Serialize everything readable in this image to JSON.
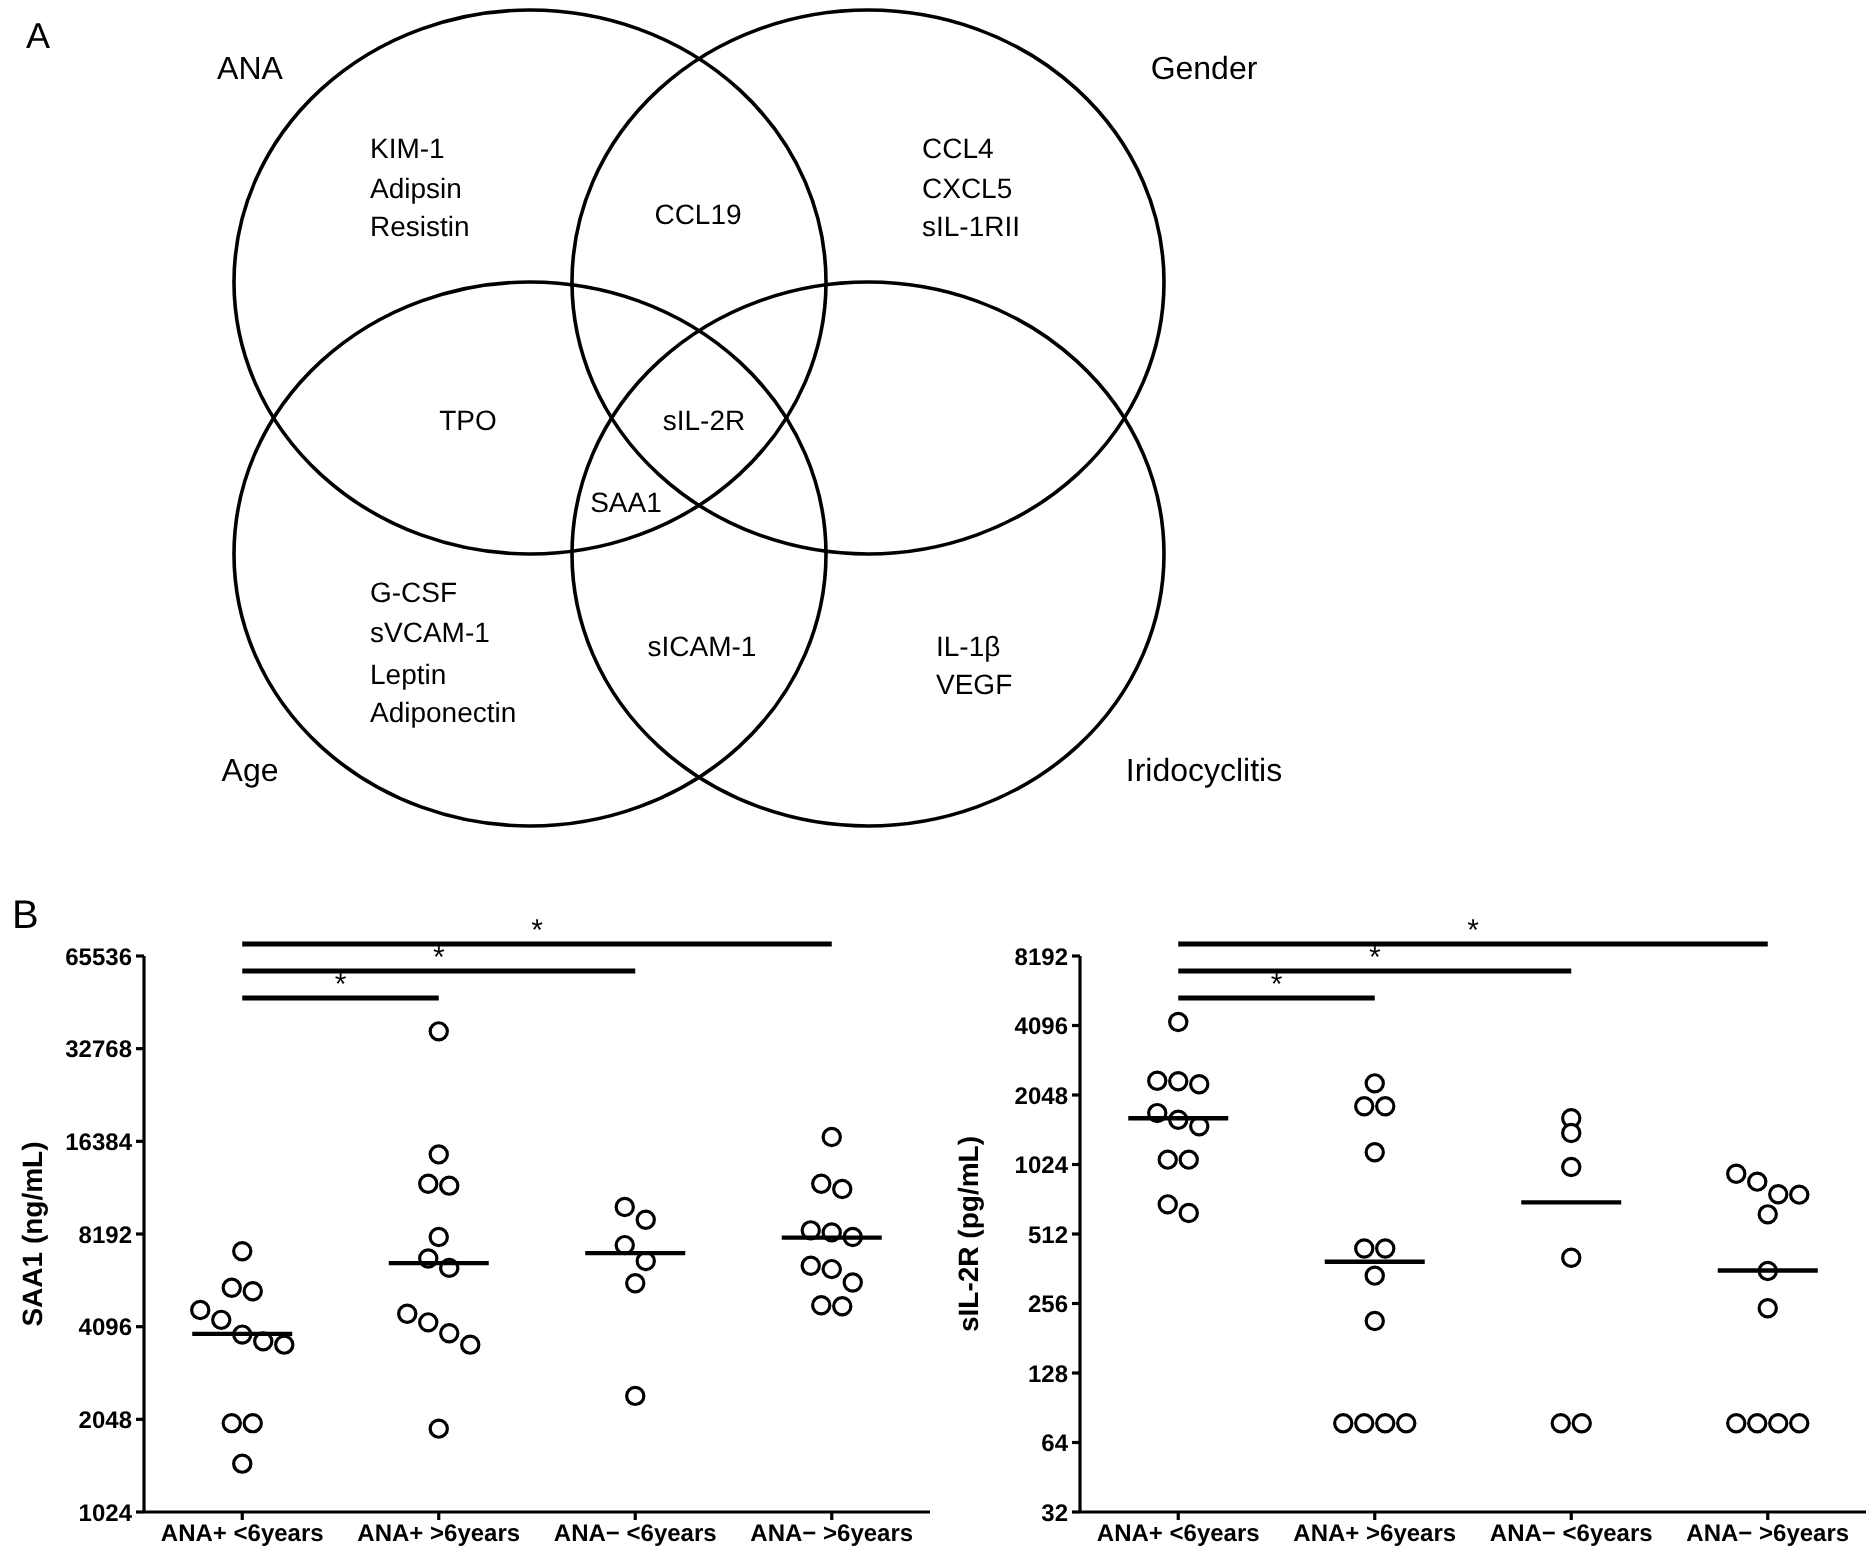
{
  "chart_data": [
    {
      "type": "other",
      "annotations": [
        "A",
        "ANA",
        "Gender",
        "Age",
        "Iridocyclitis",
        "KIM-1",
        "Adipsin",
        "Resistin",
        "CCL19",
        "CCL4",
        "CXCL5",
        "sIL-1RII",
        "TPO",
        "sIL-2R",
        "SAA1",
        "G-CSF",
        "sVCAM-1",
        "Leptin",
        "Adiponectin",
        "sICAM-1",
        "IL-1β",
        "VEGF"
      ]
    },
    {
      "type": "scatter",
      "ylabel": "SAA1 (ng/mL)",
      "log": true,
      "marker": "circle",
      "categories": [
        "ANA+ <6years",
        "ANA+ >6years",
        "ANA− <6years",
        "ANA− >6years"
      ],
      "ylim": [
        1024,
        65536
      ],
      "yticks": [
        1024,
        2048,
        4096,
        8192,
        16384,
        32768,
        65536
      ],
      "annotations": [
        "*",
        "*",
        "*",
        "B"
      ],
      "series": [
        {
          "type": "scatter",
          "color": "#000000",
          "x": [
            "ANA+ <6years",
            "ANA+ <6years",
            "ANA+ <6years",
            "ANA+ <6years",
            "ANA+ <6years",
            "ANA+ <6years",
            "ANA+ <6years",
            "ANA+ <6years",
            "ANA+ <6years",
            "ANA+ <6years",
            "ANA+ <6years",
            "ANA+ >6years",
            "ANA+ >6years",
            "ANA+ >6years",
            "ANA+ >6years",
            "ANA+ >6years",
            "ANA+ >6years",
            "ANA+ >6years",
            "ANA+ >6years",
            "ANA+ >6years",
            "ANA+ >6years",
            "ANA+ >6years",
            "ANA+ >6years",
            "ANA− <6years",
            "ANA− <6years",
            "ANA− <6years",
            "ANA− <6years",
            "ANA− <6years",
            "ANA− <6years",
            "ANA− >6years",
            "ANA− >6years",
            "ANA− >6years",
            "ANA− >6years",
            "ANA− >6years",
            "ANA− >6years",
            "ANA− >6years",
            "ANA− >6years",
            "ANA− >6years",
            "ANA− >6years",
            "ANA− >6years"
          ],
          "values": [
            7200,
            5480,
            5340,
            4640,
            4310,
            3860,
            3670,
            3580,
            1990,
            1990,
            1470,
            37300,
            14860,
            11930,
            11760,
            8010,
            6820,
            6360,
            4510,
            4230,
            3900,
            3580,
            1910,
            10020,
            9110,
            7540,
            6690,
            5670,
            2440,
            16920,
            11930,
            11470,
            8420,
            8290,
            8010,
            6460,
            6300,
            5700,
            4810,
            4770
          ]
        },
        {
          "type": "box",
          "color": "#000000",
          "boxes": [
            {
              "low": 3880,
              "q1": 3880,
              "median": 3880,
              "q3": 3880,
              "high": 3880
            },
            {
              "low": 6590,
              "q1": 6590,
              "median": 6590,
              "q3": 6590,
              "high": 6590
            },
            {
              "low": 7100,
              "q1": 7100,
              "median": 7100,
              "q3": 7100,
              "high": 7100
            },
            {
              "low": 7970,
              "q1": 7970,
              "median": 7970,
              "q3": 7970,
              "high": 7970
            }
          ]
        }
      ]
    },
    {
      "type": "scatter",
      "ylabel": "sIL-2R (pg/mL)",
      "log": true,
      "marker": "circle",
      "categories": [
        "ANA+ <6years",
        "ANA+ >6years",
        "ANA− <6years",
        "ANA− >6years"
      ],
      "ylim": [
        32,
        8192
      ],
      "yticks": [
        32,
        64,
        128,
        256,
        512,
        1024,
        2048,
        4096,
        8192
      ],
      "annotations": [
        "*",
        "*",
        "*"
      ],
      "series": [
        {
          "type": "scatter",
          "color": "#000000",
          "x": [
            "ANA+ <6years",
            "ANA+ <6years",
            "ANA+ <6years",
            "ANA+ <6years",
            "ANA+ <6years",
            "ANA+ <6years",
            "ANA+ <6years",
            "ANA+ <6years",
            "ANA+ <6years",
            "ANA+ <6years",
            "ANA+ <6years",
            "ANA+ >6years",
            "ANA+ >6years",
            "ANA+ >6years",
            "ANA+ >6years",
            "ANA+ >6years",
            "ANA+ >6years",
            "ANA+ >6years",
            "ANA+ >6years",
            "ANA+ >6years",
            "ANA+ >6years",
            "ANA+ >6years",
            "ANA+ >6years",
            "ANA− <6years",
            "ANA− <6years",
            "ANA− <6years",
            "ANA− <6years",
            "ANA− <6years",
            "ANA− <6years",
            "ANA− >6years",
            "ANA− >6years",
            "ANA− >6years",
            "ANA− >6years",
            "ANA− >6years",
            "ANA− >6years",
            "ANA− >6years",
            "ANA− >6years",
            "ANA− >6years",
            "ANA− >6years",
            "ANA− >6years"
          ],
          "values": [
            4240,
            2360,
            2350,
            2280,
            1710,
            1600,
            1500,
            1075,
            1075,
            688,
            631,
            2300,
            1830,
            1830,
            1157,
            443,
            443,
            338,
            215,
            77.5,
            77.5,
            77.5,
            77.5,
            1625,
            1403,
            999,
            404,
            77.5,
            77.5,
            934,
            863,
            761,
            758,
            623,
            354,
            244,
            77.5,
            77.5,
            77.5,
            77.5
          ]
        },
        {
          "type": "box",
          "color": "#000000",
          "boxes": [
            {
              "low": 1625,
              "q1": 1625,
              "median": 1625,
              "q3": 1625,
              "high": 1625
            },
            {
              "low": 388,
              "q1": 388,
              "median": 388,
              "q3": 388,
              "high": 388
            },
            {
              "low": 702,
              "q1": 702,
              "median": 702,
              "q3": 702,
              "high": 702
            },
            {
              "low": 356,
              "q1": 356,
              "median": 356,
              "q3": 356,
              "high": 356
            }
          ]
        }
      ]
    }
  ]
}
